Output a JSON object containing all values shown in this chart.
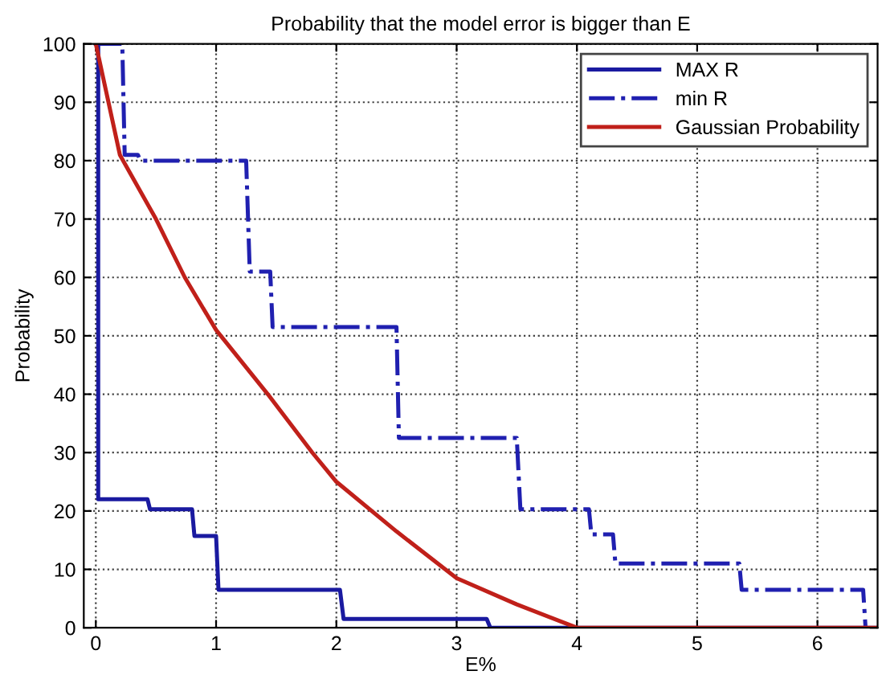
{
  "chart_data": {
    "type": "line",
    "title": "Probability that the model error is bigger than E",
    "xlabel": "E%",
    "ylabel": "Probability",
    "xlim": [
      -0.1,
      6.5
    ],
    "xticks": [
      0,
      1,
      2,
      3,
      4,
      5,
      6
    ],
    "ylim": [
      0,
      100
    ],
    "yticks": [
      0,
      10,
      20,
      30,
      40,
      50,
      60,
      70,
      80,
      90,
      100
    ],
    "grid": true,
    "legend": "top right",
    "marker": "none",
    "series": [
      {
        "name": "MAX R",
        "color": "#1a1aa0",
        "line_style": "solid",
        "x": [
          0,
          0.02,
          0.02,
          0.43,
          0.45,
          0.8,
          0.82,
          1.0,
          1.02,
          2.03,
          2.06,
          3.25,
          3.28,
          6.5
        ],
        "values": [
          100,
          100,
          22,
          22,
          20.3,
          20.3,
          15.7,
          15.7,
          6.5,
          6.5,
          1.5,
          1.5,
          0,
          0
        ]
      },
      {
        "name": "min R",
        "color": "#2020b0",
        "line_style": "dashdot",
        "x": [
          0,
          0.22,
          0.24,
          0.35,
          0.37,
          1.25,
          1.28,
          1.45,
          1.47,
          2.5,
          2.52,
          3.5,
          3.53,
          4.1,
          4.12,
          4.3,
          4.32,
          5.35,
          5.37,
          6.38,
          6.4
        ],
        "values": [
          100,
          100,
          81,
          81,
          80,
          80,
          61,
          61,
          51.5,
          51.5,
          32.5,
          32.5,
          20.3,
          20.3,
          16,
          16,
          11,
          11,
          6.5,
          6.5,
          0
        ]
      },
      {
        "name": "Gaussian Probability",
        "color": "#c0201a",
        "line_style": "solid",
        "x": [
          0,
          0.2,
          0.5,
          0.74,
          1,
          1.43,
          1.8,
          2,
          2.5,
          3,
          3.5,
          4,
          6.5
        ],
        "values": [
          100,
          81,
          70,
          60,
          51,
          40,
          30,
          25,
          16.5,
          8.5,
          4,
          0,
          0
        ]
      }
    ]
  }
}
